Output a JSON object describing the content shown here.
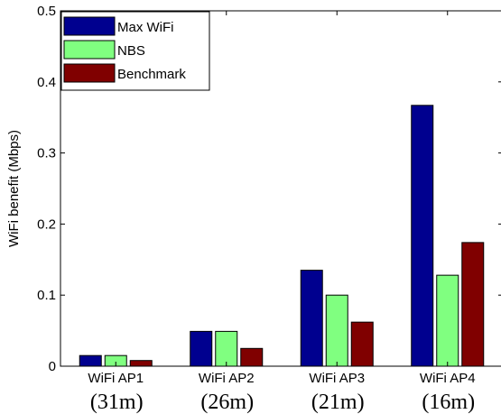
{
  "chart_data": {
    "type": "bar",
    "categories": [
      "WiFi AP1",
      "WiFi AP2",
      "WiFi AP3",
      "WiFi AP4"
    ],
    "distance_labels": [
      "(31m)",
      "(26m)",
      "(21m)",
      "(16m)"
    ],
    "series": [
      {
        "name": "Max WiFi",
        "color": "#00008f",
        "values": [
          0.015,
          0.049,
          0.135,
          0.367
        ]
      },
      {
        "name": "NBS",
        "color": "#80ff80",
        "values": [
          0.015,
          0.049,
          0.1,
          0.128
        ]
      },
      {
        "name": "Benchmark",
        "color": "#800000",
        "values": [
          0.008,
          0.025,
          0.062,
          0.174
        ]
      }
    ],
    "ylabel": "WiFi benefit (Mbps)",
    "xlabel": "",
    "title": "",
    "ylim": [
      0,
      0.5
    ],
    "yticks": [
      0,
      0.1,
      0.2,
      0.3,
      0.4,
      0.5
    ],
    "ytick_labels": [
      "0",
      "0.1",
      "0.2",
      "0.3",
      "0.4",
      "0.5"
    ],
    "grid": false,
    "legend_position": "top-left"
  }
}
